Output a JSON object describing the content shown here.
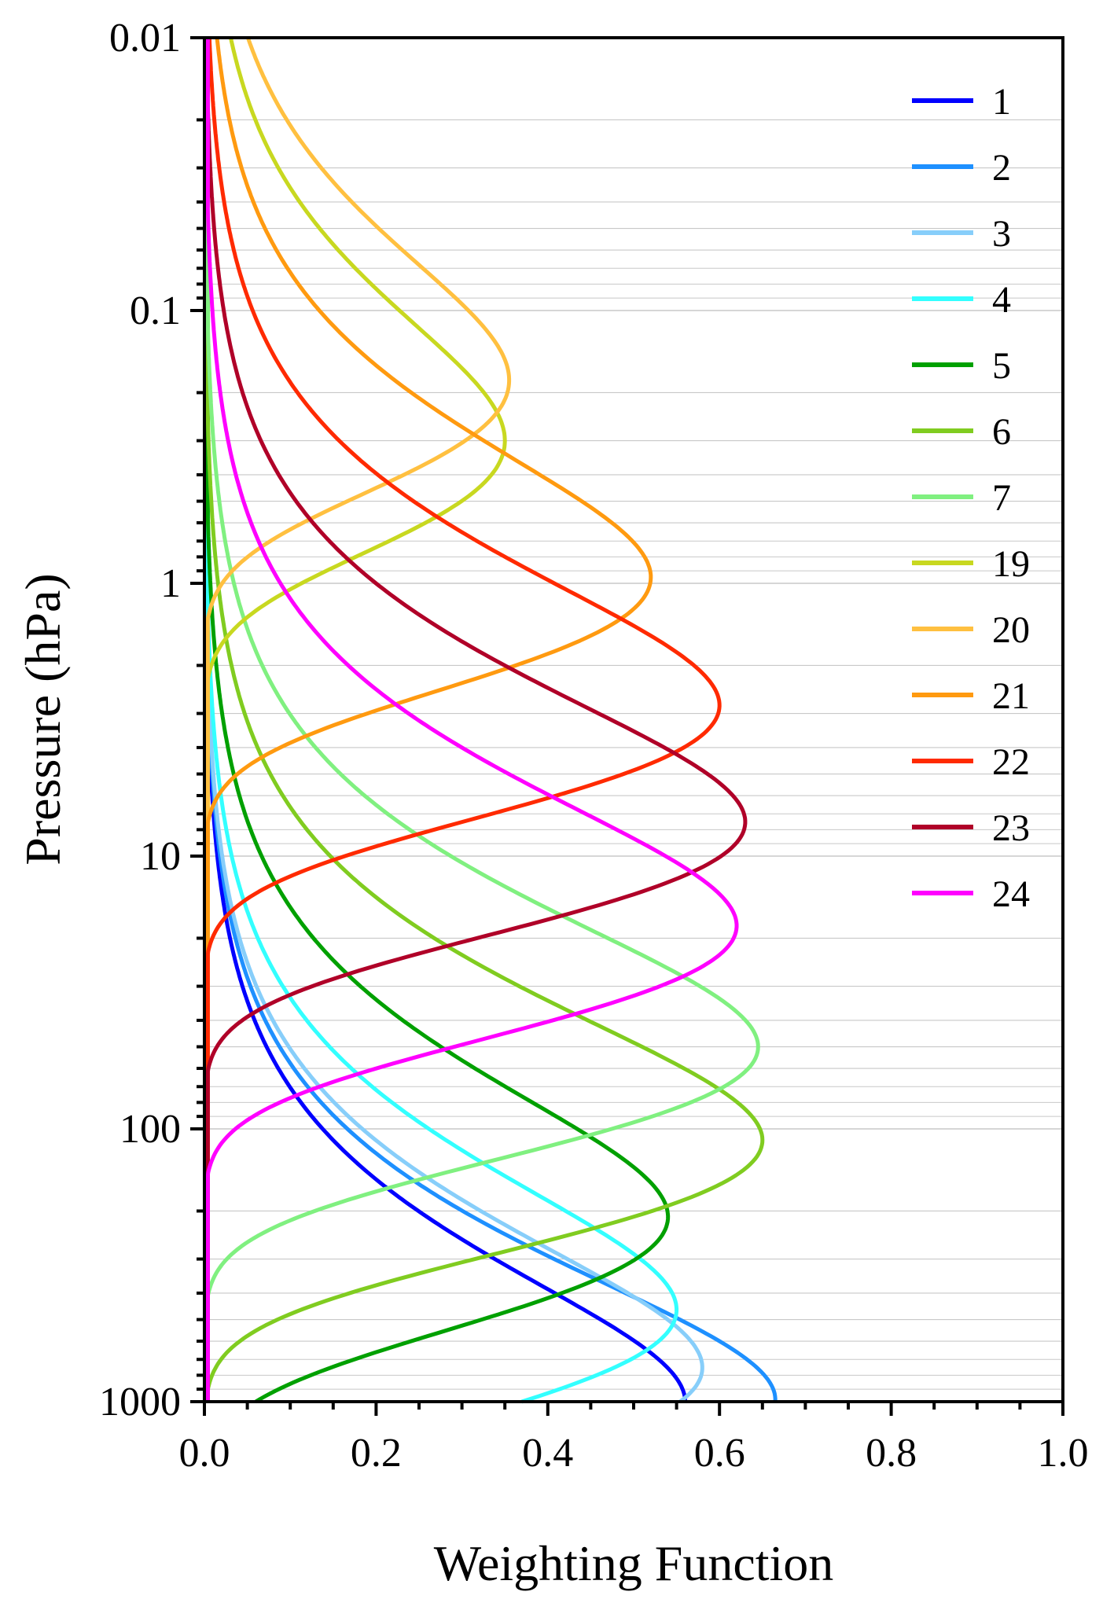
{
  "chart_data": {
    "type": "line",
    "title": "",
    "xlabel": "Weighting Function",
    "ylabel": "Pressure (hPa)",
    "xlim": [
      0.0,
      1.0
    ],
    "ylim": [
      1000,
      0.01
    ],
    "yscale": "log",
    "grid": true,
    "legend_position": "top-right",
    "x_ticks": [
      "0.0",
      "0.2",
      "0.4",
      "0.6",
      "0.8",
      "1.0"
    ],
    "y_ticks": [
      "0.01",
      "0.1",
      "1",
      "10",
      "100",
      "1000"
    ],
    "series": [
      {
        "name": "1",
        "color": "#0000ff",
        "peak_weight": 0.56,
        "peak_pressure_hPa": 1000
      },
      {
        "name": "2",
        "color": "#1e90ff",
        "peak_weight": 0.665,
        "peak_pressure_hPa": 980
      },
      {
        "name": "3",
        "color": "#87cefa",
        "peak_weight": 0.58,
        "peak_pressure_hPa": 750
      },
      {
        "name": "4",
        "color": "#33ffff",
        "peak_weight": 0.55,
        "peak_pressure_hPa": 460
      },
      {
        "name": "5",
        "color": "#00a000",
        "peak_weight": 0.54,
        "peak_pressure_hPa": 210
      },
      {
        "name": "6",
        "color": "#80cc20",
        "peak_weight": 0.65,
        "peak_pressure_hPa": 110
      },
      {
        "name": "7",
        "color": "#80f080",
        "peak_weight": 0.645,
        "peak_pressure_hPa": 50
      },
      {
        "name": "19",
        "color": "#c8d820",
        "peak_weight": 0.35,
        "peak_pressure_hPa": 0.3
      },
      {
        "name": "20",
        "color": "#ffc040",
        "peak_weight": 0.355,
        "peak_pressure_hPa": 0.18
      },
      {
        "name": "21",
        "color": "#ff9a10",
        "peak_weight": 0.52,
        "peak_pressure_hPa": 0.95
      },
      {
        "name": "22",
        "color": "#ff2a00",
        "peak_weight": 0.6,
        "peak_pressure_hPa": 2.8
      },
      {
        "name": "23",
        "color": "#b00028",
        "peak_weight": 0.63,
        "peak_pressure_hPa": 7.5
      },
      {
        "name": "24",
        "color": "#ff00ff",
        "peak_weight": 0.62,
        "peak_pressure_hPa": 18
      }
    ]
  }
}
